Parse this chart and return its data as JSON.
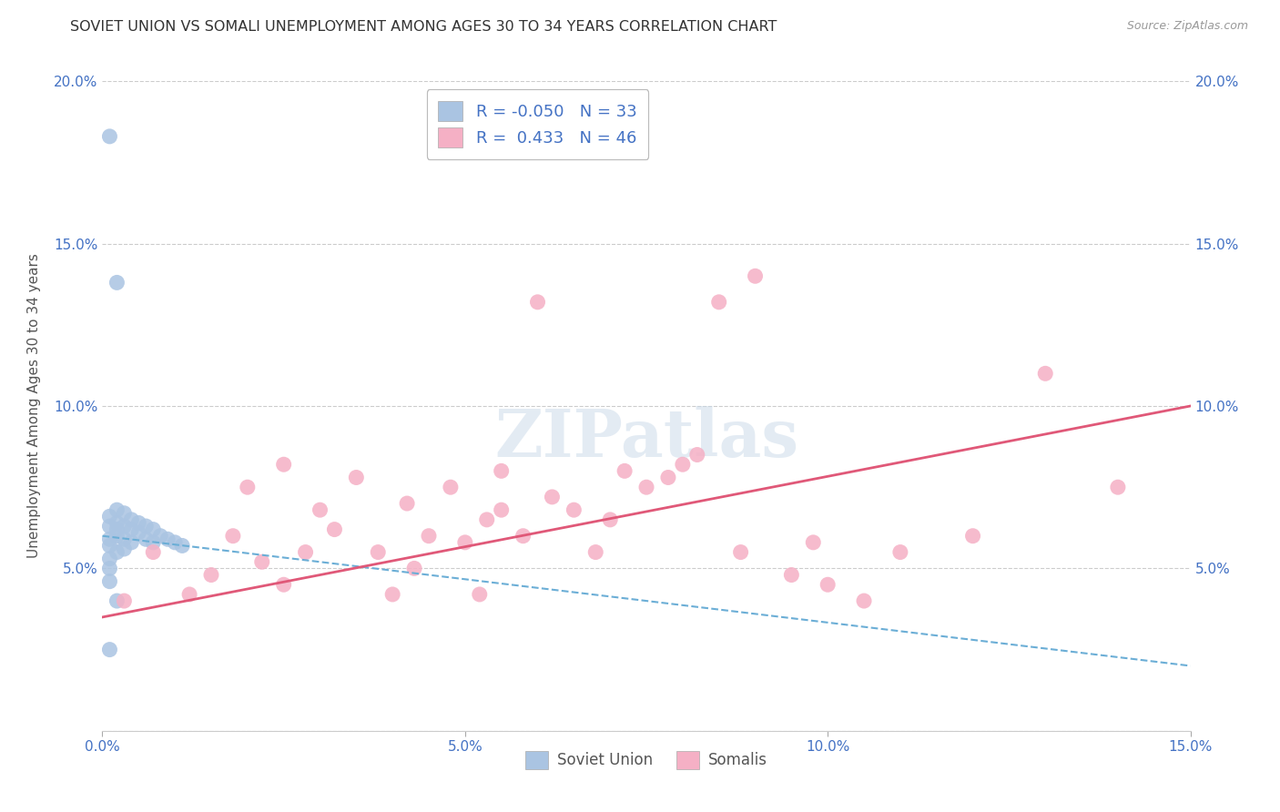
{
  "title": "SOVIET UNION VS SOMALI UNEMPLOYMENT AMONG AGES 30 TO 34 YEARS CORRELATION CHART",
  "source": "Source: ZipAtlas.com",
  "ylabel": "Unemployment Among Ages 30 to 34 years",
  "xlim": [
    0.0,
    0.15
  ],
  "ylim": [
    0.0,
    0.2
  ],
  "xticks": [
    0.0,
    0.05,
    0.1,
    0.15
  ],
  "yticks": [
    0.0,
    0.05,
    0.1,
    0.15,
    0.2
  ],
  "xticklabels": [
    "0.0%",
    "5.0%",
    "10.0%",
    "15.0%"
  ],
  "yticklabels_left": [
    "",
    "5.0%",
    "10.0%",
    "15.0%",
    "20.0%"
  ],
  "yticklabels_right": [
    "",
    "5.0%",
    "10.0%",
    "15.0%",
    "20.0%"
  ],
  "soviet_R": "-0.050",
  "soviet_N": "33",
  "somali_R": "0.433",
  "somali_N": "46",
  "soviet_color": "#aac4e2",
  "somali_color": "#f5b0c5",
  "soviet_line_color": "#6baed6",
  "somali_line_color": "#e05878",
  "legend_label_soviet": "Soviet Union",
  "legend_label_somali": "Somalis",
  "soviet_x": [
    0.001,
    0.001,
    0.001,
    0.001,
    0.001,
    0.001,
    0.002,
    0.002,
    0.002,
    0.002,
    0.002,
    0.003,
    0.003,
    0.003,
    0.003,
    0.004,
    0.004,
    0.004,
    0.005,
    0.005,
    0.006,
    0.006,
    0.007,
    0.007,
    0.008,
    0.009,
    0.01,
    0.011,
    0.001,
    0.002,
    0.001,
    0.002,
    0.001
  ],
  "soviet_y": [
    0.063,
    0.066,
    0.059,
    0.057,
    0.053,
    0.05,
    0.064,
    0.062,
    0.06,
    0.068,
    0.055,
    0.063,
    0.067,
    0.059,
    0.056,
    0.065,
    0.062,
    0.058,
    0.061,
    0.064,
    0.063,
    0.059,
    0.062,
    0.058,
    0.06,
    0.059,
    0.058,
    0.057,
    0.183,
    0.138,
    0.046,
    0.04,
    0.025
  ],
  "somali_x": [
    0.003,
    0.007,
    0.012,
    0.015,
    0.018,
    0.02,
    0.022,
    0.025,
    0.025,
    0.028,
    0.03,
    0.032,
    0.035,
    0.038,
    0.04,
    0.042,
    0.043,
    0.045,
    0.048,
    0.05,
    0.052,
    0.053,
    0.055,
    0.055,
    0.058,
    0.06,
    0.062,
    0.065,
    0.068,
    0.07,
    0.072,
    0.075,
    0.078,
    0.08,
    0.082,
    0.085,
    0.088,
    0.09,
    0.095,
    0.098,
    0.1,
    0.105,
    0.11,
    0.12,
    0.13,
    0.14
  ],
  "somali_y": [
    0.04,
    0.055,
    0.042,
    0.048,
    0.06,
    0.075,
    0.052,
    0.045,
    0.082,
    0.055,
    0.068,
    0.062,
    0.078,
    0.055,
    0.042,
    0.07,
    0.05,
    0.06,
    0.075,
    0.058,
    0.042,
    0.065,
    0.08,
    0.068,
    0.06,
    0.132,
    0.072,
    0.068,
    0.055,
    0.065,
    0.08,
    0.075,
    0.078,
    0.082,
    0.085,
    0.132,
    0.055,
    0.14,
    0.048,
    0.058,
    0.045,
    0.04,
    0.055,
    0.06,
    0.11,
    0.075
  ],
  "soviet_line_x0": 0.0,
  "soviet_line_y0": 0.06,
  "soviet_line_x1": 0.15,
  "soviet_line_y1": 0.02,
  "somali_line_x0": 0.0,
  "somali_line_y0": 0.035,
  "somali_line_x1": 0.15,
  "somali_line_y1": 0.1
}
